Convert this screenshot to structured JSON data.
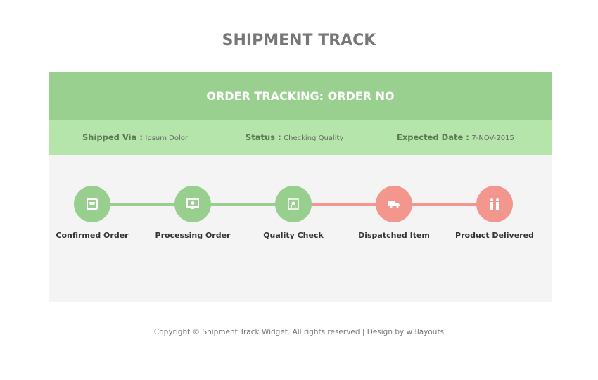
{
  "page_title": "SHIPMENT TRACK",
  "header": "ORDER TRACKING: ORDER NO",
  "info": {
    "shipped_label": "Shipped Via :",
    "shipped_value": "Ipsum Dolor",
    "status_label": "Status :",
    "status_value": "Checking Quality",
    "date_label": "Expected Date :",
    "date_value": "7-NOV-2015"
  },
  "colors": {
    "done": "#98cf8f",
    "pending": "#f3968d"
  },
  "steps": [
    {
      "label": "Confirmed Order",
      "icon": "cart-icon",
      "state": "done"
    },
    {
      "label": "Processing Order",
      "icon": "monitor-gear-icon",
      "state": "done"
    },
    {
      "label": "Quality Check",
      "icon": "certificate-icon",
      "state": "done"
    },
    {
      "label": "Dispatched Item",
      "icon": "truck-icon",
      "state": "pending"
    },
    {
      "label": "Product Delivered",
      "icon": "people-handover-icon",
      "state": "pending"
    }
  ],
  "footer": "Copyright © Shipment Track Widget. All rights reserved | Design by w3layouts"
}
